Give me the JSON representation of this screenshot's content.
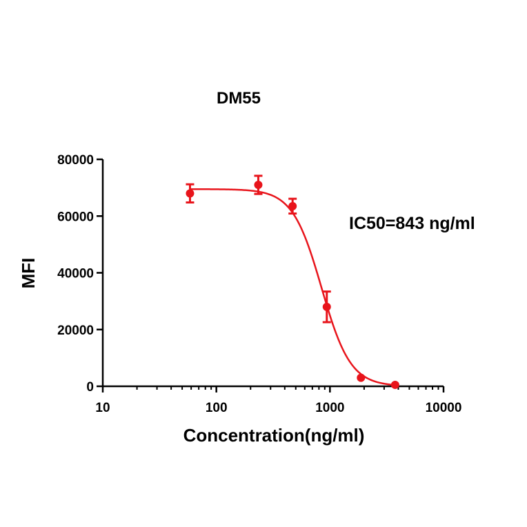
{
  "chart_data": {
    "type": "scatter",
    "title": "DM55",
    "xlabel": "Concentration(ng/ml)",
    "ylabel": "MFI",
    "x_scale": "log",
    "xlim": [
      10,
      10000
    ],
    "ylim": [
      0,
      80000
    ],
    "x_ticks": [
      10,
      100,
      1000,
      10000
    ],
    "x_tick_labels": [
      "10",
      "100",
      "1000",
      "10000"
    ],
    "y_ticks": [
      0,
      20000,
      40000,
      60000,
      80000
    ],
    "y_tick_labels": [
      "0",
      "20000",
      "40000",
      "60000",
      "80000"
    ],
    "grid": false,
    "annotation": "IC50=843 ng/ml",
    "colors": {
      "series": "#e8141b",
      "axis": "#000000"
    },
    "series": [
      {
        "x": [
          58.6,
          234,
          469,
          938,
          1875,
          3750
        ],
        "y": [
          68000,
          71000,
          63500,
          28000,
          3000,
          500
        ],
        "error": [
          3200,
          3200,
          2600,
          5400,
          0,
          0
        ]
      }
    ],
    "fit": {
      "type": "4PL",
      "top": 69500,
      "bottom": 0,
      "ic50": 843,
      "hill": 3.4
    }
  }
}
